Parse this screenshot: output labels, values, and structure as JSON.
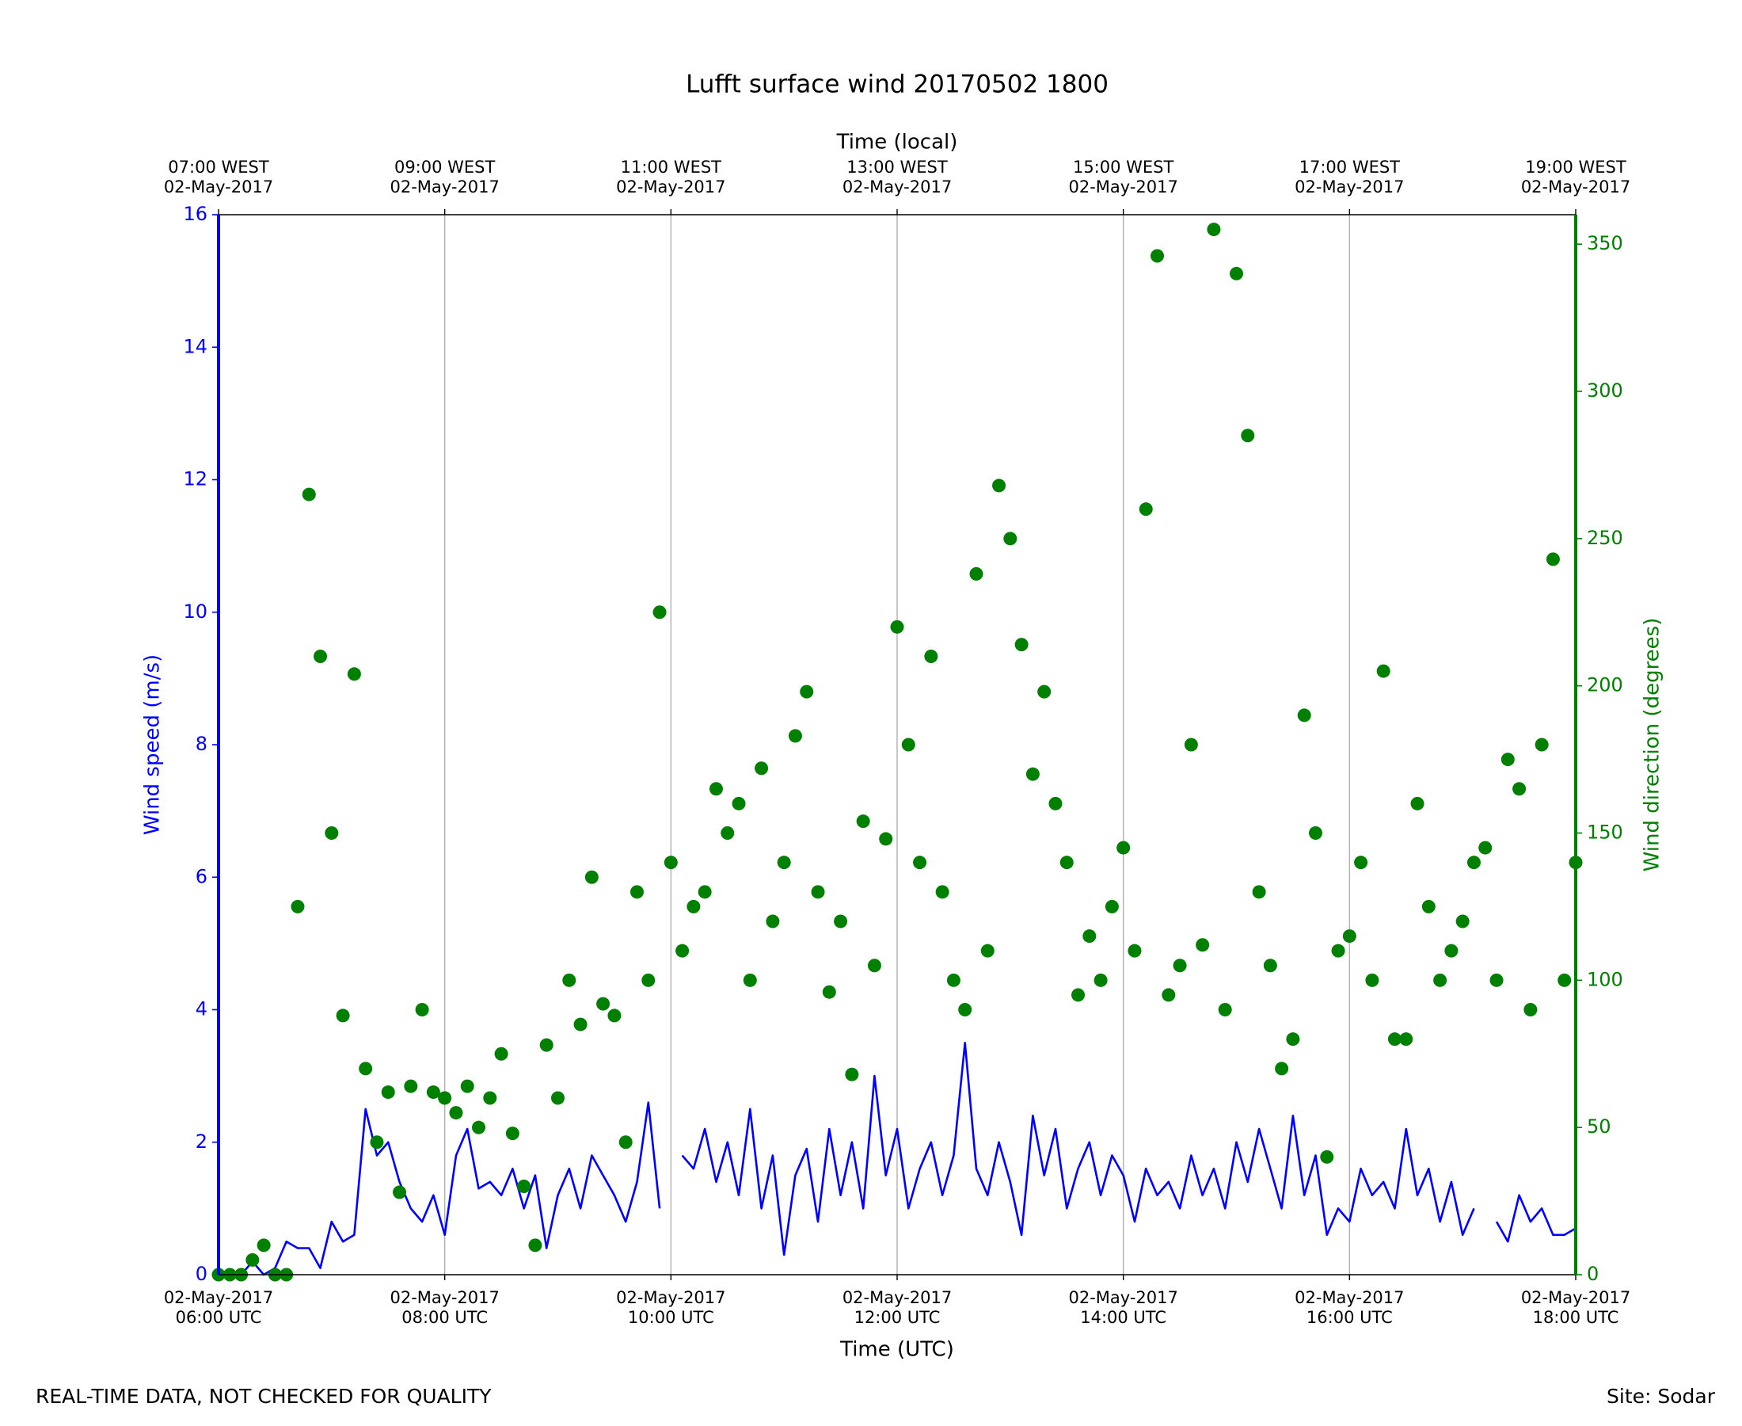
{
  "chart_data": {
    "type": "line",
    "title": "Lufft surface wind 20170502 1800",
    "x2label": "Time (local)",
    "xlabel": "Time (UTC)",
    "ylabel": "Wind speed (m/s)",
    "y2label": "Wind direction (degrees)",
    "x": [
      "2017-05-02T06:00",
      "2017-05-02T06:06",
      "2017-05-02T06:12",
      "2017-05-02T06:18",
      "2017-05-02T06:24",
      "2017-05-02T06:30",
      "2017-05-02T06:36",
      "2017-05-02T06:42",
      "2017-05-02T06:48",
      "2017-05-02T06:54",
      "2017-05-02T07:00",
      "2017-05-02T07:06",
      "2017-05-02T07:12",
      "2017-05-02T07:18",
      "2017-05-02T07:24",
      "2017-05-02T07:30",
      "2017-05-02T07:36",
      "2017-05-02T07:42",
      "2017-05-02T07:48",
      "2017-05-02T07:54",
      "2017-05-02T08:00",
      "2017-05-02T08:06",
      "2017-05-02T08:12",
      "2017-05-02T08:18",
      "2017-05-02T08:24",
      "2017-05-02T08:30",
      "2017-05-02T08:36",
      "2017-05-02T08:42",
      "2017-05-02T08:48",
      "2017-05-02T08:54",
      "2017-05-02T09:00",
      "2017-05-02T09:06",
      "2017-05-02T09:12",
      "2017-05-02T09:18",
      "2017-05-02T09:24",
      "2017-05-02T09:30",
      "2017-05-02T09:36",
      "2017-05-02T09:42",
      "2017-05-02T09:48",
      "2017-05-02T09:54",
      "2017-05-02T10:00",
      "2017-05-02T10:06",
      "2017-05-02T10:12",
      "2017-05-02T10:18",
      "2017-05-02T10:24",
      "2017-05-02T10:30",
      "2017-05-02T10:36",
      "2017-05-02T10:42",
      "2017-05-02T10:48",
      "2017-05-02T10:54",
      "2017-05-02T11:00",
      "2017-05-02T11:06",
      "2017-05-02T11:12",
      "2017-05-02T11:18",
      "2017-05-02T11:24",
      "2017-05-02T11:30",
      "2017-05-02T11:36",
      "2017-05-02T11:42",
      "2017-05-02T11:48",
      "2017-05-02T11:54",
      "2017-05-02T12:00",
      "2017-05-02T12:06",
      "2017-05-02T12:12",
      "2017-05-02T12:18",
      "2017-05-02T12:24",
      "2017-05-02T12:30",
      "2017-05-02T12:36",
      "2017-05-02T12:42",
      "2017-05-02T12:48",
      "2017-05-02T12:54",
      "2017-05-02T13:00",
      "2017-05-02T13:06",
      "2017-05-02T13:12",
      "2017-05-02T13:18",
      "2017-05-02T13:24",
      "2017-05-02T13:30",
      "2017-05-02T13:36",
      "2017-05-02T13:42",
      "2017-05-02T13:48",
      "2017-05-02T13:54",
      "2017-05-02T14:00",
      "2017-05-02T14:06",
      "2017-05-02T14:12",
      "2017-05-02T14:18",
      "2017-05-02T14:24",
      "2017-05-02T14:30",
      "2017-05-02T14:36",
      "2017-05-02T14:42",
      "2017-05-02T14:48",
      "2017-05-02T14:54",
      "2017-05-02T15:00",
      "2017-05-02T15:06",
      "2017-05-02T15:12",
      "2017-05-02T15:18",
      "2017-05-02T15:24",
      "2017-05-02T15:30",
      "2017-05-02T15:36",
      "2017-05-02T15:42",
      "2017-05-02T15:48",
      "2017-05-02T15:54",
      "2017-05-02T16:00",
      "2017-05-02T16:06",
      "2017-05-02T16:12",
      "2017-05-02T16:18",
      "2017-05-02T16:24",
      "2017-05-02T16:30",
      "2017-05-02T16:36",
      "2017-05-02T16:42",
      "2017-05-02T16:48",
      "2017-05-02T16:54",
      "2017-05-02T17:00",
      "2017-05-02T17:06",
      "2017-05-02T17:12",
      "2017-05-02T17:18",
      "2017-05-02T17:24",
      "2017-05-02T17:30",
      "2017-05-02T17:36",
      "2017-05-02T17:42",
      "2017-05-02T17:48",
      "2017-05-02T17:54",
      "2017-05-02T18:00"
    ],
    "series": [
      {
        "type": "line",
        "color": "#0000ff",
        "values": [
          0,
          0,
          0,
          0.2,
          0,
          0.1,
          0.5,
          0.4,
          0.4,
          0.1,
          0.8,
          0.5,
          0.6,
          2.5,
          1.8,
          2.0,
          1.4,
          1.0,
          0.8,
          1.2,
          0.6,
          1.8,
          2.2,
          1.3,
          1.4,
          1.2,
          1.6,
          1.0,
          1.5,
          0.4,
          1.2,
          1.6,
          1.0,
          1.8,
          1.5,
          1.2,
          0.8,
          1.4,
          2.6,
          1.0,
          null,
          1.8,
          1.6,
          2.2,
          1.4,
          2.0,
          1.2,
          2.5,
          1.0,
          1.8,
          0.3,
          1.5,
          1.9,
          0.8,
          2.2,
          1.2,
          2.0,
          1.0,
          3.0,
          1.5,
          2.2,
          1.0,
          1.6,
          2.0,
          1.2,
          1.8,
          3.5,
          1.6,
          1.2,
          2.0,
          1.4,
          0.6,
          2.4,
          1.5,
          2.2,
          1.0,
          1.6,
          2.0,
          1.2,
          1.8,
          1.5,
          0.8,
          1.6,
          1.2,
          1.4,
          1.0,
          1.8,
          1.2,
          1.6,
          1.0,
          2.0,
          1.4,
          2.2,
          1.6,
          1.0,
          2.4,
          1.2,
          1.8,
          0.6,
          1.0,
          0.8,
          1.6,
          1.2,
          1.4,
          1.0,
          2.2,
          1.2,
          1.6,
          0.8,
          1.4,
          0.6,
          1.0,
          null,
          0.8,
          0.5,
          1.2,
          0.8,
          1.0,
          0.6,
          0.6,
          0.7
        ]
      },
      {
        "type": "scatter",
        "axis": "y2",
        "color": "#008000",
        "values": [
          0,
          0,
          0,
          5,
          10,
          0,
          0,
          125,
          265,
          210,
          150,
          88,
          204,
          70,
          45,
          62,
          28,
          64,
          90,
          62,
          60,
          55,
          64,
          50,
          60,
          75,
          48,
          30,
          10,
          78,
          60,
          100,
          85,
          135,
          92,
          88,
          45,
          130,
          100,
          225,
          140,
          110,
          125,
          130,
          165,
          150,
          160,
          100,
          172,
          120,
          140,
          183,
          198,
          130,
          96,
          120,
          68,
          154,
          105,
          148,
          220,
          180,
          140,
          210,
          130,
          100,
          90,
          238,
          110,
          268,
          250,
          214,
          170,
          198,
          160,
          140,
          95,
          115,
          100,
          125,
          145,
          110,
          260,
          346,
          95,
          105,
          180,
          112,
          355,
          90,
          340,
          285,
          130,
          105,
          70,
          80,
          190,
          150,
          40,
          110,
          115,
          140,
          100,
          205,
          80,
          80,
          160,
          125,
          100,
          110,
          120,
          140,
          145,
          100,
          175,
          165,
          90,
          180,
          243,
          100,
          140
        ]
      }
    ],
    "xlim": [
      "2017-05-02T06:00",
      "2017-05-02T18:00"
    ],
    "xticks": [
      {
        "value": "2017-05-02T06:00",
        "label": "02-May-2017\n06:00 UTC"
      },
      {
        "value": "2017-05-02T08:00",
        "label": "02-May-2017\n08:00 UTC"
      },
      {
        "value": "2017-05-02T10:00",
        "label": "02-May-2017\n10:00 UTC"
      },
      {
        "value": "2017-05-02T12:00",
        "label": "02-May-2017\n12:00 UTC"
      },
      {
        "value": "2017-05-02T14:00",
        "label": "02-May-2017\n14:00 UTC"
      },
      {
        "value": "2017-05-02T16:00",
        "label": "02-May-2017\n16:00 UTC"
      },
      {
        "value": "2017-05-02T18:00",
        "label": "02-May-2017\n18:00 UTC"
      }
    ],
    "x2ticks": [
      {
        "value": "2017-05-02T06:00",
        "label": "07:00 WEST\n02-May-2017"
      },
      {
        "value": "2017-05-02T08:00",
        "label": "09:00 WEST\n02-May-2017"
      },
      {
        "value": "2017-05-02T10:00",
        "label": "11:00 WEST\n02-May-2017"
      },
      {
        "value": "2017-05-02T12:00",
        "label": "13:00 WEST\n02-May-2017"
      },
      {
        "value": "2017-05-02T14:00",
        "label": "15:00 WEST\n02-May-2017"
      },
      {
        "value": "2017-05-02T16:00",
        "label": "17:00 WEST\n02-May-2017"
      },
      {
        "value": "2017-05-02T18:00",
        "label": "19:00 WEST\n02-May-2017"
      }
    ],
    "ylim": [
      0,
      16
    ],
    "yticks": [
      0,
      2,
      4,
      6,
      8,
      10,
      12,
      14,
      16
    ],
    "y2lim": [
      0,
      360
    ],
    "y2ticks": [
      0,
      50,
      100,
      150,
      200,
      250,
      300,
      350
    ],
    "grid": "x"
  },
  "footer": {
    "left": "REAL-TIME DATA, NOT CHECKED FOR QUALITY",
    "right": "Site: Sodar"
  }
}
